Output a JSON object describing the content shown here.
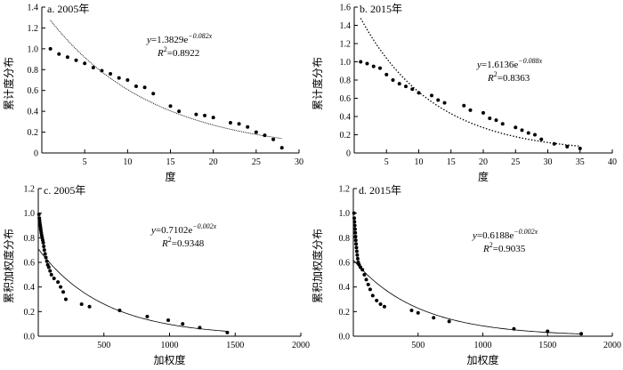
{
  "chart_data": [
    {
      "id": "a",
      "type": "scatter",
      "title": "a. 2005年",
      "xlabel": "度",
      "ylabel": "累计度分布",
      "xlim": [
        0,
        30
      ],
      "ylim": [
        0,
        1.4
      ],
      "xticks": [
        5,
        10,
        15,
        20,
        25,
        30
      ],
      "yticks": [
        0,
        0.2,
        0.4,
        0.6,
        0.8,
        1.0,
        1.2,
        1.4
      ],
      "ytick_labels": [
        "0",
        "0.2",
        "0.4",
        "0.6",
        "0.8",
        "1.0",
        "1.2",
        "1.4"
      ],
      "xtick_labels": [
        "5",
        "10",
        "15",
        "20",
        "25",
        "30"
      ],
      "points": [
        [
          1,
          1.0
        ],
        [
          2,
          0.95
        ],
        [
          3,
          0.92
        ],
        [
          4,
          0.89
        ],
        [
          5,
          0.86
        ],
        [
          6,
          0.82
        ],
        [
          7,
          0.79
        ],
        [
          8,
          0.76
        ],
        [
          9,
          0.72
        ],
        [
          10,
          0.7
        ],
        [
          11,
          0.64
        ],
        [
          12,
          0.63
        ],
        [
          13,
          0.57
        ],
        [
          15,
          0.45
        ],
        [
          16,
          0.4
        ],
        [
          18,
          0.37
        ],
        [
          19,
          0.36
        ],
        [
          20,
          0.34
        ],
        [
          22,
          0.29
        ],
        [
          23,
          0.28
        ],
        [
          24,
          0.25
        ],
        [
          25,
          0.2
        ],
        [
          26,
          0.17
        ],
        [
          27,
          0.13
        ],
        [
          28,
          0.05
        ]
      ],
      "fit": {
        "a": 1.3829,
        "b": -0.082,
        "x_range": [
          1,
          28
        ],
        "style": "solid"
      },
      "equation": {
        "y_text": "y",
        "eq_text": "=1.3829e",
        "exp_text": "−0.082x",
        "r2_label": "R",
        "r2_sup": "2",
        "r2_value": "=0.8922"
      }
    },
    {
      "id": "b",
      "type": "scatter",
      "title": "b. 2015年",
      "xlabel": "度",
      "ylabel": "累计度分布",
      "xlim": [
        0,
        40
      ],
      "ylim": [
        0,
        1.6
      ],
      "xticks": [
        5,
        10,
        15,
        20,
        25,
        30,
        35,
        40
      ],
      "yticks": [
        0,
        0.2,
        0.4,
        0.6,
        0.8,
        1.0,
        1.2,
        1.4,
        1.6
      ],
      "ytick_labels": [
        "0",
        "0.2",
        "0.4",
        "0.6",
        "0.8",
        "1.0",
        "1.2",
        "1.4",
        "1.6"
      ],
      "xtick_labels": [
        "5",
        "10",
        "15",
        "20",
        "25",
        "30",
        "35",
        "40"
      ],
      "points": [
        [
          1,
          1.0
        ],
        [
          2,
          0.98
        ],
        [
          3,
          0.95
        ],
        [
          4,
          0.93
        ],
        [
          5,
          0.86
        ],
        [
          6,
          0.8
        ],
        [
          7,
          0.76
        ],
        [
          8,
          0.73
        ],
        [
          9,
          0.7
        ],
        [
          10,
          0.66
        ],
        [
          12,
          0.63
        ],
        [
          13,
          0.58
        ],
        [
          14,
          0.55
        ],
        [
          17,
          0.52
        ],
        [
          18,
          0.47
        ],
        [
          20,
          0.44
        ],
        [
          21,
          0.38
        ],
        [
          22,
          0.36
        ],
        [
          23,
          0.32
        ],
        [
          25,
          0.28
        ],
        [
          26,
          0.25
        ],
        [
          27,
          0.22
        ],
        [
          28,
          0.2
        ],
        [
          29,
          0.15
        ],
        [
          31,
          0.1
        ],
        [
          33,
          0.07
        ],
        [
          35,
          0.05
        ]
      ],
      "fit": {
        "a": 1.6136,
        "b": -0.088,
        "x_range": [
          1,
          35
        ],
        "style": "dotted"
      },
      "equation": {
        "y_text": "y",
        "eq_text": "=1.6136e",
        "exp_text": "−0.088x",
        "r2_label": "R",
        "r2_sup": "2",
        "r2_value": "=0.8363"
      }
    },
    {
      "id": "c",
      "type": "scatter",
      "title": "c. 2005年",
      "xlabel": "加权度",
      "ylabel": "累积加权度分布",
      "xlim": [
        0,
        2000
      ],
      "ylim": [
        0,
        1.2
      ],
      "xticks": [
        500,
        1000,
        1500,
        2000
      ],
      "yticks": [
        0,
        0.2,
        0.4,
        0.6,
        0.8,
        1.0,
        1.2
      ],
      "ytick_labels": [
        "0.0",
        "0.2",
        "0.4",
        "0.6",
        "0.8",
        "1.0",
        "1.2"
      ],
      "xtick_labels": [
        "500",
        "1000",
        "1500",
        "2000"
      ],
      "points": [
        [
          5,
          0.99
        ],
        [
          8,
          0.96
        ],
        [
          10,
          0.94
        ],
        [
          12,
          0.92
        ],
        [
          15,
          0.9
        ],
        [
          18,
          0.88
        ],
        [
          20,
          0.86
        ],
        [
          23,
          0.84
        ],
        [
          26,
          0.82
        ],
        [
          30,
          0.8
        ],
        [
          34,
          0.78
        ],
        [
          38,
          0.76
        ],
        [
          42,
          0.73
        ],
        [
          46,
          0.7
        ],
        [
          52,
          0.67
        ],
        [
          58,
          0.64
        ],
        [
          65,
          0.61
        ],
        [
          72,
          0.58
        ],
        [
          80,
          0.56
        ],
        [
          90,
          0.53
        ],
        [
          100,
          0.5
        ],
        [
          120,
          0.47
        ],
        [
          150,
          0.44
        ],
        [
          170,
          0.4
        ],
        [
          190,
          0.36
        ],
        [
          210,
          0.3
        ],
        [
          330,
          0.26
        ],
        [
          390,
          0.24
        ],
        [
          620,
          0.21
        ],
        [
          830,
          0.16
        ],
        [
          990,
          0.13
        ],
        [
          1100,
          0.1
        ],
        [
          1230,
          0.07
        ],
        [
          1440,
          0.03
        ]
      ],
      "fit": {
        "a": 0.7102,
        "b": -0.002,
        "x_range": [
          0,
          1440
        ],
        "style": "solid"
      },
      "equation": {
        "y_text": "y",
        "eq_text": "=0.7102e",
        "exp_text": "−0.002x",
        "r2_label": "R",
        "r2_sup": "2",
        "r2_value": "=0.9348"
      }
    },
    {
      "id": "d",
      "type": "scatter",
      "title": "d. 2015年",
      "xlabel": "加权度",
      "ylabel": "累积加权度分布",
      "xlim": [
        0,
        2000
      ],
      "ylim": [
        0,
        1.2
      ],
      "xticks": [
        500,
        1000,
        1500,
        2000
      ],
      "yticks": [
        0,
        0.2,
        0.4,
        0.6,
        0.8,
        1.0,
        1.2
      ],
      "ytick_labels": [
        "0.0",
        "0.2",
        "0.4",
        "0.6",
        "0.8",
        "1.0",
        "1.2"
      ],
      "xtick_labels": [
        "500",
        "1000",
        "1500",
        "2000"
      ],
      "points": [
        [
          5,
          1.0
        ],
        [
          7,
          0.96
        ],
        [
          9,
          0.93
        ],
        [
          11,
          0.9
        ],
        [
          13,
          0.87
        ],
        [
          15,
          0.84
        ],
        [
          17,
          0.81
        ],
        [
          19,
          0.78
        ],
        [
          21,
          0.75
        ],
        [
          24,
          0.72
        ],
        [
          27,
          0.69
        ],
        [
          30,
          0.66
        ],
        [
          34,
          0.63
        ],
        [
          38,
          0.6
        ],
        [
          45,
          0.58
        ],
        [
          55,
          0.56
        ],
        [
          70,
          0.54
        ],
        [
          85,
          0.5
        ],
        [
          100,
          0.46
        ],
        [
          115,
          0.42
        ],
        [
          130,
          0.38
        ],
        [
          150,
          0.33
        ],
        [
          180,
          0.29
        ],
        [
          210,
          0.26
        ],
        [
          240,
          0.24
        ],
        [
          450,
          0.21
        ],
        [
          500,
          0.19
        ],
        [
          620,
          0.15
        ],
        [
          740,
          0.12
        ],
        [
          1240,
          0.06
        ],
        [
          1500,
          0.04
        ],
        [
          1760,
          0.02
        ]
      ],
      "fit": {
        "a": 0.6188,
        "b": -0.002,
        "x_range": [
          0,
          1760
        ],
        "style": "solid"
      },
      "equation": {
        "y_text": "y",
        "eq_text": "=0.6188e",
        "exp_text": "−0.002x",
        "r2_label": "R",
        "r2_sup": "2",
        "r2_value": "=0.9035"
      }
    }
  ]
}
